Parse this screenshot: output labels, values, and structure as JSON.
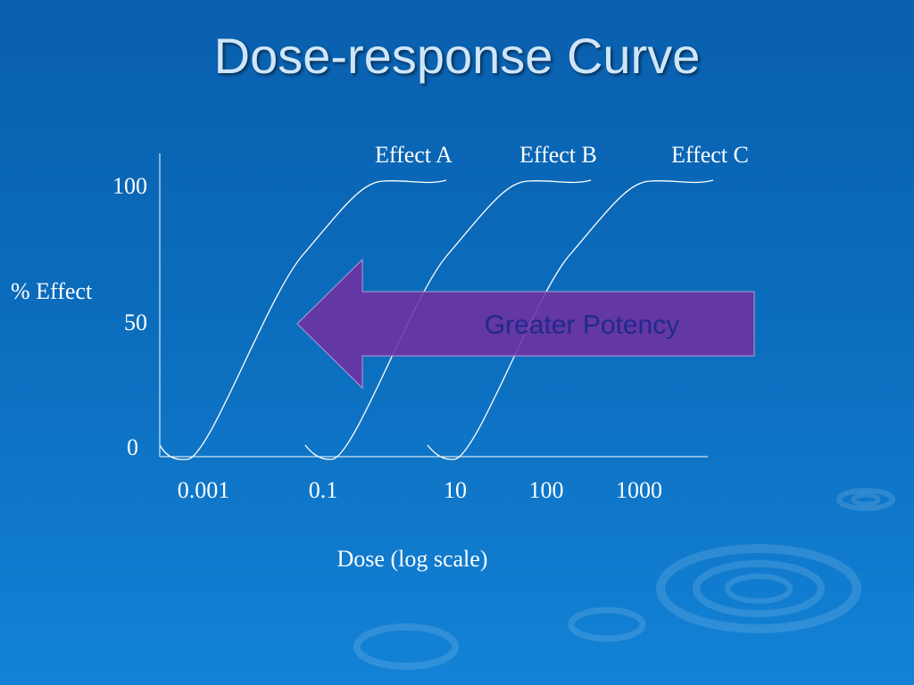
{
  "slide": {
    "title": "Dose-response Curve"
  },
  "chart_data": {
    "type": "line",
    "title": "",
    "xlabel": "Dose (log scale)",
    "ylabel": "% Effect",
    "x_scale": "log",
    "x_ticks": [
      "0.001",
      "0.1",
      "10",
      "100",
      "1000"
    ],
    "y_ticks": [
      "0",
      "50",
      "100"
    ],
    "ylim": [
      0,
      100
    ],
    "grid": false,
    "series": [
      {
        "name": "Effect A",
        "x": [
          0.001,
          0.01,
          0.1
        ],
        "y": [
          0,
          50,
          100
        ]
      },
      {
        "name": "Effect B",
        "x": [
          0.1,
          1,
          10
        ],
        "y": [
          0,
          50,
          100
        ]
      },
      {
        "name": "Effect C",
        "x": [
          10,
          30,
          100
        ],
        "y": [
          0,
          50,
          100
        ]
      }
    ],
    "annotation": {
      "text": "Greater Potency",
      "color": "#7030a0",
      "direction": "left"
    }
  },
  "colors": {
    "curve": "#ffffff",
    "arrow_fill": "#7030a0",
    "arrow_text": "#1f2a8a"
  }
}
